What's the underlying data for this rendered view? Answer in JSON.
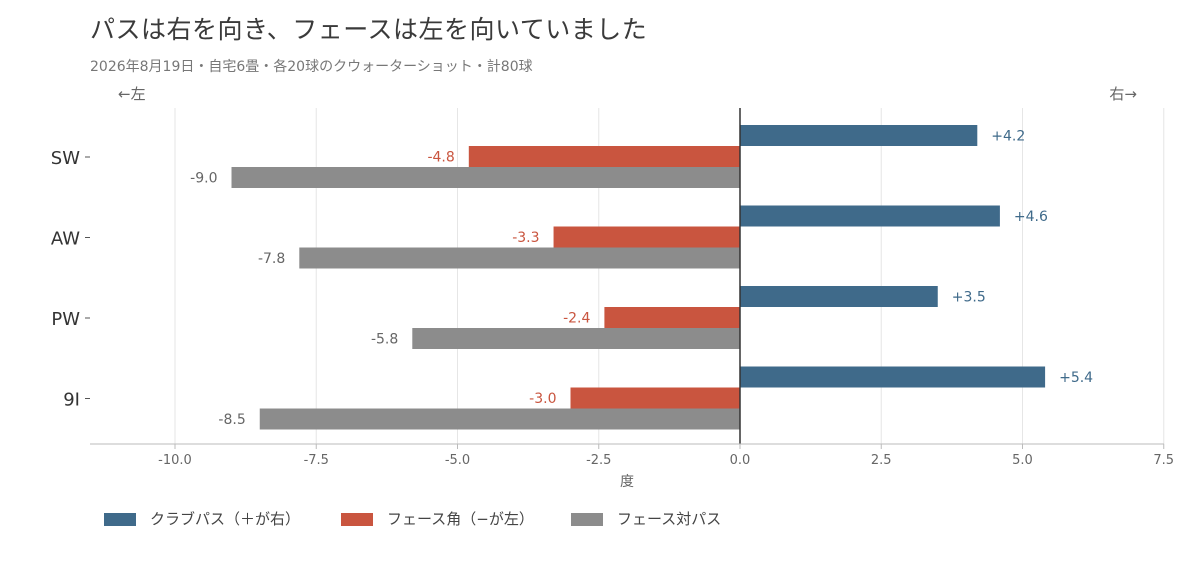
{
  "header": {
    "title": "パスは右を向き、フェースは左を向いていました",
    "subtitle": "2026年8月19日・自宅6畳・各20球のクウォーターショット・計80球"
  },
  "chart_data": {
    "type": "bar",
    "orientation": "horizontal",
    "categories": [
      "SW",
      "AW",
      "PW",
      "9I"
    ],
    "series": [
      {
        "name": "クラブパス（＋が右）",
        "values": [
          4.2,
          4.6,
          3.5,
          5.4
        ],
        "labels": [
          "+4.2",
          "+4.6",
          "+3.5",
          "+5.4"
        ],
        "color": "#3f6a8a"
      },
      {
        "name": "フェース角（−が左）",
        "values": [
          -4.8,
          -3.3,
          -2.4,
          -3.0
        ],
        "labels": [
          "-4.8",
          "-3.3",
          "-2.4",
          "-3.0"
        ],
        "color": "#c9553f"
      },
      {
        "name": "フェース対パス",
        "values": [
          -9.0,
          -7.8,
          -5.8,
          -8.5
        ],
        "labels": [
          "-9.0",
          "-7.8",
          "-5.8",
          "-8.5"
        ],
        "color": "#8c8c8c"
      }
    ],
    "xlabel": "度",
    "xlim": [
      -11.5,
      7.5
    ],
    "xticks": [
      -10.0,
      -7.5,
      -5.0,
      -2.5,
      0.0,
      2.5,
      5.0,
      7.5
    ],
    "xtick_labels": [
      "-10.0",
      "-7.5",
      "-5.0",
      "-2.5",
      "0.0",
      "2.5",
      "5.0",
      "7.5"
    ],
    "direction_left": "←左",
    "direction_right": "右→",
    "grid": "vertical",
    "legend_position": "bottom-left"
  }
}
